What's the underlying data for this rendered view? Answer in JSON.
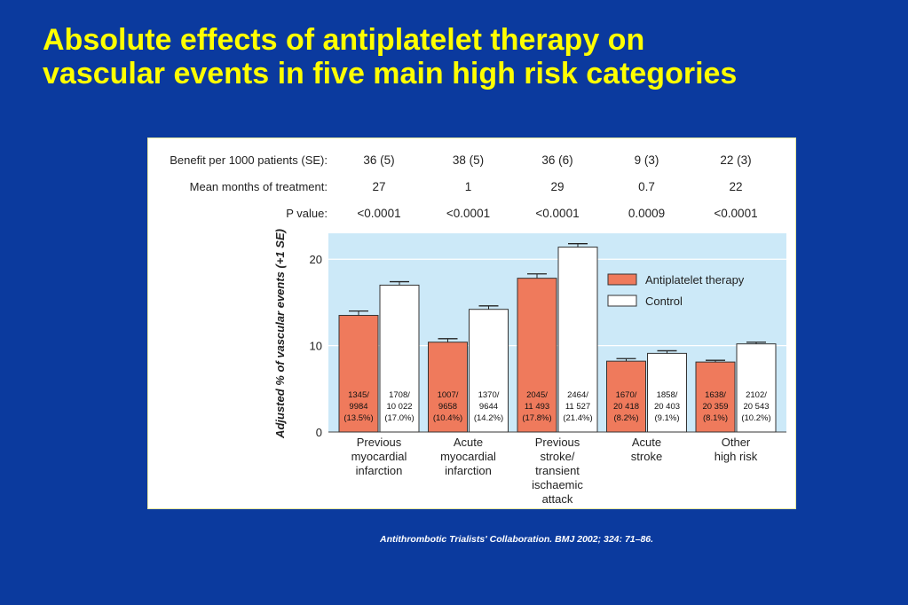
{
  "slide": {
    "title_line1": "Absolute effects of antiplatelet therapy on",
    "title_line2": "vascular events in five main high risk categories",
    "citation": "Antithrombotic Trialists' Collaboration. BMJ 2002; 324: 71–86."
  },
  "colors": {
    "background": "#0b3a9e",
    "title": "#ffff00",
    "plot_bg": "#cce9f8",
    "antiplatelet": "#ef7a5c",
    "control": "#ffffff"
  },
  "chart_data": {
    "type": "bar",
    "ylabel": "Adjusted % of vascular events (+1 SE)",
    "ylim": [
      0,
      23
    ],
    "yticks": [
      0,
      10,
      20
    ],
    "yticks_labels": [
      "0",
      "10",
      "20"
    ],
    "grid": true,
    "legend": "top-right",
    "categories": [
      [
        "Previous",
        "myocardial",
        "infarction"
      ],
      [
        "Acute",
        "myocardial",
        "infarction"
      ],
      [
        "Previous",
        "stroke/",
        "transient",
        "ischaemic",
        "attack"
      ],
      [
        "Acute",
        "stroke"
      ],
      [
        "Other",
        "high risk"
      ]
    ],
    "table_rows": [
      {
        "label": "Benefit per 1000 patients (SE):",
        "values": [
          "36 (5)",
          "38 (5)",
          "36 (6)",
          "9 (3)",
          "22 (3)"
        ]
      },
      {
        "label": "Mean months of treatment:",
        "values": [
          "27",
          "1",
          "29",
          "0.7",
          "22"
        ]
      },
      {
        "label": "P value:",
        "values": [
          "<0.0001",
          "<0.0001",
          "<0.0001",
          "0.0009",
          "<0.0001"
        ]
      }
    ],
    "series": [
      {
        "name": "Antiplatelet therapy",
        "values": [
          13.5,
          10.4,
          17.8,
          8.2,
          8.1
        ],
        "se": [
          0.5,
          0.4,
          0.5,
          0.3,
          0.2
        ],
        "labels": [
          [
            "1345/",
            "9984",
            "(13.5%)"
          ],
          [
            "1007/",
            "9658",
            "(10.4%)"
          ],
          [
            "2045/",
            "11 493",
            "(17.8%)"
          ],
          [
            "1670/",
            "20 418",
            "(8.2%)"
          ],
          [
            "1638/",
            "20 359",
            "(8.1%)"
          ]
        ]
      },
      {
        "name": "Control",
        "values": [
          17.0,
          14.2,
          21.4,
          9.1,
          10.2
        ],
        "se": [
          0.4,
          0.4,
          0.4,
          0.3,
          0.2
        ],
        "labels": [
          [
            "1708/",
            "10 022",
            "(17.0%)"
          ],
          [
            "1370/",
            "9644",
            "(14.2%)"
          ],
          [
            "2464/",
            "11 527",
            "(21.4%)"
          ],
          [
            "1858/",
            "20 403",
            "(9.1%)"
          ],
          [
            "2102/",
            "20 543",
            "(10.2%)"
          ]
        ]
      }
    ]
  }
}
